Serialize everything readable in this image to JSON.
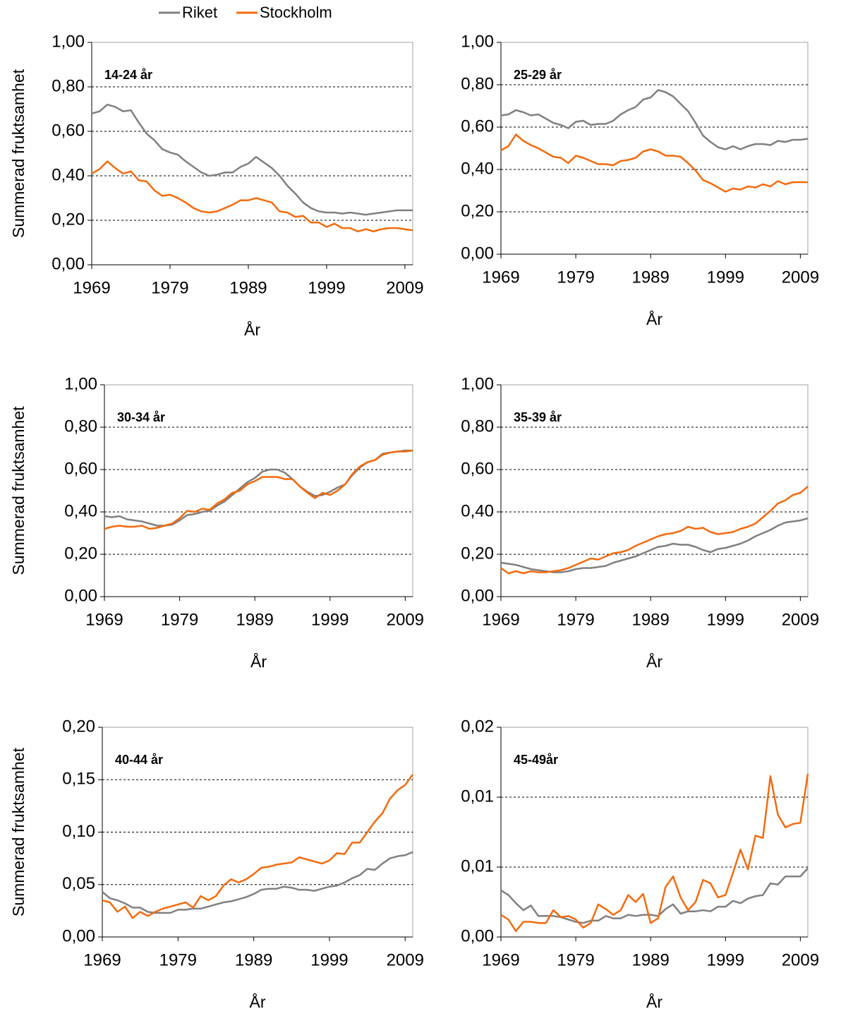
{
  "chart_data": [
    {
      "type": "line",
      "title": "14-24 år",
      "x_label": "År",
      "y_label": "Summerad fruktsamhet",
      "x": [
        1969,
        1970,
        1971,
        1972,
        1973,
        1974,
        1975,
        1976,
        1977,
        1978,
        1979,
        1980,
        1981,
        1982,
        1983,
        1984,
        1985,
        1986,
        1987,
        1988,
        1989,
        1990,
        1991,
        1992,
        1993,
        1994,
        1995,
        1996,
        1997,
        1998,
        1999,
        2000,
        2001,
        2002,
        2003,
        2004,
        2005,
        2006,
        2007,
        2008,
        2009,
        2010
      ],
      "xlim": [
        1969,
        2010
      ],
      "xticks": [
        1969,
        1979,
        1989,
        1999,
        2009
      ],
      "ylim": [
        0,
        1
      ],
      "yticks": [
        {
          "value": 0,
          "label": "0,00"
        },
        {
          "value": 0.2,
          "label": "0,20"
        },
        {
          "value": 0.4,
          "label": "0,40"
        },
        {
          "value": 0.6,
          "label": "0,60"
        },
        {
          "value": 0.8,
          "label": "0,80"
        },
        {
          "value": 1,
          "label": "1,00"
        }
      ],
      "grid": true,
      "series": [
        {
          "name": "Riket",
          "color": "#808080",
          "values": [
            0.68,
            0.69,
            0.72,
            0.71,
            0.69,
            0.695,
            0.64,
            0.59,
            0.56,
            0.52,
            0.505,
            0.495,
            0.465,
            0.44,
            0.415,
            0.4,
            0.405,
            0.415,
            0.415,
            0.44,
            0.455,
            0.485,
            0.46,
            0.435,
            0.4,
            0.355,
            0.32,
            0.28,
            0.255,
            0.24,
            0.235,
            0.235,
            0.23,
            0.235,
            0.23,
            0.225,
            0.23,
            0.235,
            0.24,
            0.245,
            0.245,
            0.245
          ]
        },
        {
          "name": "Stockholm",
          "color": "#f26b0f",
          "values": [
            0.41,
            0.43,
            0.465,
            0.435,
            0.41,
            0.42,
            0.38,
            0.375,
            0.335,
            0.31,
            0.315,
            0.3,
            0.28,
            0.255,
            0.24,
            0.235,
            0.24,
            0.255,
            0.27,
            0.29,
            0.29,
            0.3,
            0.29,
            0.28,
            0.24,
            0.235,
            0.215,
            0.22,
            0.19,
            0.19,
            0.17,
            0.185,
            0.165,
            0.165,
            0.15,
            0.16,
            0.15,
            0.16,
            0.165,
            0.165,
            0.16,
            0.155
          ]
        }
      ]
    },
    {
      "type": "line",
      "title": "25-29 år",
      "x_label": "År",
      "x": [
        1969,
        1970,
        1971,
        1972,
        1973,
        1974,
        1975,
        1976,
        1977,
        1978,
        1979,
        1980,
        1981,
        1982,
        1983,
        1984,
        1985,
        1986,
        1987,
        1988,
        1989,
        1990,
        1991,
        1992,
        1993,
        1994,
        1995,
        1996,
        1997,
        1998,
        1999,
        2000,
        2001,
        2002,
        2003,
        2004,
        2005,
        2006,
        2007,
        2008,
        2009,
        2010
      ],
      "xlim": [
        1969,
        2010
      ],
      "xticks": [
        1969,
        1979,
        1989,
        1999,
        2009
      ],
      "ylim": [
        0,
        1
      ],
      "yticks": [
        {
          "value": 0,
          "label": "0,00"
        },
        {
          "value": 0.2,
          "label": "0,20"
        },
        {
          "value": 0.4,
          "label": "0,40"
        },
        {
          "value": 0.6,
          "label": "0,60"
        },
        {
          "value": 0.8,
          "label": "0,80"
        },
        {
          "value": 1,
          "label": "1,00"
        }
      ],
      "grid": true,
      "series": [
        {
          "color": "#808080",
          "values": [
            0.655,
            0.66,
            0.68,
            0.67,
            0.655,
            0.66,
            0.64,
            0.62,
            0.61,
            0.595,
            0.625,
            0.63,
            0.61,
            0.615,
            0.615,
            0.63,
            0.66,
            0.68,
            0.695,
            0.73,
            0.74,
            0.775,
            0.765,
            0.745,
            0.71,
            0.675,
            0.62,
            0.56,
            0.53,
            0.505,
            0.495,
            0.51,
            0.495,
            0.51,
            0.52,
            0.52,
            0.515,
            0.535,
            0.53,
            0.54,
            0.54,
            0.545
          ]
        },
        {
          "color": "#f26b0f",
          "values": [
            0.49,
            0.51,
            0.565,
            0.535,
            0.515,
            0.5,
            0.48,
            0.46,
            0.455,
            0.43,
            0.465,
            0.455,
            0.44,
            0.425,
            0.425,
            0.42,
            0.44,
            0.445,
            0.455,
            0.485,
            0.495,
            0.485,
            0.465,
            0.465,
            0.46,
            0.43,
            0.395,
            0.35,
            0.335,
            0.315,
            0.295,
            0.31,
            0.305,
            0.32,
            0.315,
            0.33,
            0.32,
            0.345,
            0.33,
            0.34,
            0.34,
            0.34
          ]
        }
      ]
    },
    {
      "type": "line",
      "title": "30-34 år",
      "x_label": "År",
      "y_label": "Summerad fruktsamhet",
      "x": [
        1969,
        1970,
        1971,
        1972,
        1973,
        1974,
        1975,
        1976,
        1977,
        1978,
        1979,
        1980,
        1981,
        1982,
        1983,
        1984,
        1985,
        1986,
        1987,
        1988,
        1989,
        1990,
        1991,
        1992,
        1993,
        1994,
        1995,
        1996,
        1997,
        1998,
        1999,
        2000,
        2001,
        2002,
        2003,
        2004,
        2005,
        2006,
        2007,
        2008,
        2009,
        2010
      ],
      "xlim": [
        1969,
        2010
      ],
      "xticks": [
        1969,
        1979,
        1989,
        1999,
        2009
      ],
      "ylim": [
        0,
        1
      ],
      "yticks": [
        {
          "value": 0,
          "label": "0,00"
        },
        {
          "value": 0.2,
          "label": "0,20"
        },
        {
          "value": 0.4,
          "label": "0,40"
        },
        {
          "value": 0.6,
          "label": "0,60"
        },
        {
          "value": 0.8,
          "label": "0,80"
        },
        {
          "value": 1,
          "label": "1,00"
        }
      ],
      "grid": true,
      "series": [
        {
          "color": "#808080",
          "values": [
            0.38,
            0.375,
            0.38,
            0.365,
            0.36,
            0.355,
            0.345,
            0.335,
            0.335,
            0.34,
            0.36,
            0.385,
            0.39,
            0.4,
            0.405,
            0.43,
            0.45,
            0.48,
            0.51,
            0.54,
            0.56,
            0.59,
            0.6,
            0.6,
            0.585,
            0.555,
            0.52,
            0.495,
            0.475,
            0.48,
            0.495,
            0.515,
            0.53,
            0.575,
            0.61,
            0.635,
            0.645,
            0.675,
            0.68,
            0.685,
            0.69,
            0.69
          ]
        },
        {
          "color": "#f26b0f",
          "values": [
            0.32,
            0.33,
            0.335,
            0.33,
            0.33,
            0.335,
            0.32,
            0.325,
            0.335,
            0.345,
            0.37,
            0.405,
            0.4,
            0.415,
            0.41,
            0.44,
            0.46,
            0.49,
            0.5,
            0.53,
            0.545,
            0.565,
            0.565,
            0.565,
            0.555,
            0.555,
            0.52,
            0.49,
            0.465,
            0.49,
            0.48,
            0.5,
            0.53,
            0.58,
            0.615,
            0.635,
            0.645,
            0.67,
            0.68,
            0.685,
            0.685,
            0.69
          ]
        }
      ]
    },
    {
      "type": "line",
      "title": "35-39 år",
      "x_label": "År",
      "x": [
        1969,
        1970,
        1971,
        1972,
        1973,
        1974,
        1975,
        1976,
        1977,
        1978,
        1979,
        1980,
        1981,
        1982,
        1983,
        1984,
        1985,
        1986,
        1987,
        1988,
        1989,
        1990,
        1991,
        1992,
        1993,
        1994,
        1995,
        1996,
        1997,
        1998,
        1999,
        2000,
        2001,
        2002,
        2003,
        2004,
        2005,
        2006,
        2007,
        2008,
        2009,
        2010
      ],
      "xlim": [
        1969,
        2010
      ],
      "xticks": [
        1969,
        1979,
        1989,
        1999,
        2009
      ],
      "ylim": [
        0,
        1
      ],
      "yticks": [
        {
          "value": 0,
          "label": "0,00"
        },
        {
          "value": 0.2,
          "label": "0,20"
        },
        {
          "value": 0.4,
          "label": "0,40"
        },
        {
          "value": 0.6,
          "label": "0,60"
        },
        {
          "value": 0.8,
          "label": "0,80"
        },
        {
          "value": 1,
          "label": "1,00"
        }
      ],
      "grid": true,
      "series": [
        {
          "color": "#808080",
          "values": [
            0.16,
            0.155,
            0.15,
            0.14,
            0.13,
            0.125,
            0.12,
            0.115,
            0.115,
            0.12,
            0.13,
            0.135,
            0.135,
            0.14,
            0.145,
            0.16,
            0.17,
            0.18,
            0.19,
            0.205,
            0.22,
            0.235,
            0.24,
            0.25,
            0.245,
            0.245,
            0.235,
            0.22,
            0.21,
            0.225,
            0.23,
            0.24,
            0.25,
            0.265,
            0.285,
            0.3,
            0.315,
            0.335,
            0.35,
            0.355,
            0.36,
            0.37
          ]
        },
        {
          "color": "#f26b0f",
          "values": [
            0.135,
            0.11,
            0.12,
            0.11,
            0.12,
            0.115,
            0.115,
            0.12,
            0.125,
            0.135,
            0.15,
            0.165,
            0.18,
            0.175,
            0.19,
            0.205,
            0.21,
            0.22,
            0.24,
            0.255,
            0.27,
            0.285,
            0.295,
            0.3,
            0.31,
            0.33,
            0.32,
            0.325,
            0.305,
            0.295,
            0.3,
            0.305,
            0.32,
            0.33,
            0.345,
            0.375,
            0.405,
            0.44,
            0.455,
            0.48,
            0.49,
            0.52
          ]
        }
      ]
    },
    {
      "type": "line",
      "title": "40-44 år",
      "x_label": "År",
      "y_label": "Summerad fruktsamhet",
      "x": [
        1969,
        1970,
        1971,
        1972,
        1973,
        1974,
        1975,
        1976,
        1977,
        1978,
        1979,
        1980,
        1981,
        1982,
        1983,
        1984,
        1985,
        1986,
        1987,
        1988,
        1989,
        1990,
        1991,
        1992,
        1993,
        1994,
        1995,
        1996,
        1997,
        1998,
        1999,
        2000,
        2001,
        2002,
        2003,
        2004,
        2005,
        2006,
        2007,
        2008,
        2009,
        2010
      ],
      "xlim": [
        1969,
        2010
      ],
      "xticks": [
        1969,
        1979,
        1989,
        1999,
        2009
      ],
      "ylim": [
        0,
        0.2
      ],
      "yticks": [
        {
          "value": 0,
          "label": "0,00"
        },
        {
          "value": 0.05,
          "label": "0,05"
        },
        {
          "value": 0.1,
          "label": "0,10"
        },
        {
          "value": 0.15,
          "label": "0,15"
        },
        {
          "value": 0.2,
          "label": "0,20"
        }
      ],
      "grid": true,
      "series": [
        {
          "color": "#808080",
          "values": [
            0.043,
            0.037,
            0.035,
            0.032,
            0.028,
            0.028,
            0.024,
            0.023,
            0.023,
            0.023,
            0.026,
            0.026,
            0.027,
            0.027,
            0.029,
            0.031,
            0.033,
            0.034,
            0.036,
            0.038,
            0.041,
            0.045,
            0.046,
            0.046,
            0.048,
            0.047,
            0.045,
            0.045,
            0.044,
            0.046,
            0.048,
            0.049,
            0.052,
            0.056,
            0.059,
            0.065,
            0.064,
            0.07,
            0.075,
            0.077,
            0.078,
            0.081
          ]
        },
        {
          "color": "#f26b0f",
          "values": [
            0.035,
            0.033,
            0.024,
            0.029,
            0.018,
            0.024,
            0.02,
            0.024,
            0.027,
            0.029,
            0.031,
            0.033,
            0.028,
            0.039,
            0.035,
            0.039,
            0.049,
            0.055,
            0.052,
            0.055,
            0.06,
            0.066,
            0.067,
            0.069,
            0.07,
            0.071,
            0.076,
            0.074,
            0.072,
            0.07,
            0.073,
            0.08,
            0.079,
            0.09,
            0.09,
            0.1,
            0.11,
            0.118,
            0.132,
            0.14,
            0.145,
            0.155
          ]
        }
      ]
    },
    {
      "type": "line",
      "title": "45-49år",
      "x_label": "År",
      "x": [
        1969,
        1970,
        1971,
        1972,
        1973,
        1974,
        1975,
        1976,
        1977,
        1978,
        1979,
        1980,
        1981,
        1982,
        1983,
        1984,
        1985,
        1986,
        1987,
        1988,
        1989,
        1990,
        1991,
        1992,
        1993,
        1994,
        1995,
        1996,
        1997,
        1998,
        1999,
        2000,
        2001,
        2002,
        2003,
        2004,
        2005,
        2006,
        2007,
        2008,
        2009,
        2010
      ],
      "xlim": [
        1969,
        2010
      ],
      "xticks": [
        1969,
        1979,
        1989,
        1999,
        2009
      ],
      "ylim": [
        0,
        0.018
      ],
      "yticks": [
        {
          "value": 0,
          "label": "0,00"
        },
        {
          "value": 0.006,
          "label": "0,01"
        },
        {
          "value": 0.012,
          "label": "0,01"
        },
        {
          "value": 0.018,
          "label": "0,02"
        }
      ],
      "grid": true,
      "series": [
        {
          "color": "#808080",
          "values": [
            0.004,
            0.0036,
            0.0029,
            0.0023,
            0.0027,
            0.0018,
            0.0018,
            0.0018,
            0.0017,
            0.0015,
            0.0013,
            0.0012,
            0.0014,
            0.0014,
            0.0018,
            0.0016,
            0.0016,
            0.0019,
            0.0018,
            0.0019,
            0.0019,
            0.0018,
            0.0024,
            0.0028,
            0.002,
            0.0022,
            0.0022,
            0.0023,
            0.0022,
            0.0026,
            0.0026,
            0.0031,
            0.0029,
            0.0033,
            0.0035,
            0.0036,
            0.0046,
            0.0045,
            0.0052,
            0.0052,
            0.0052,
            0.0059
          ]
        },
        {
          "color": "#f26b0f",
          "values": [
            0.0019,
            0.0015,
            0.0005,
            0.0013,
            0.0013,
            0.0012,
            0.0012,
            0.0023,
            0.0017,
            0.0018,
            0.0015,
            0.0008,
            0.0012,
            0.0028,
            0.0024,
            0.0019,
            0.0023,
            0.0036,
            0.003,
            0.0037,
            0.0012,
            0.0016,
            0.0043,
            0.0052,
            0.0034,
            0.0023,
            0.003,
            0.0049,
            0.0046,
            0.0034,
            0.0036,
            0.0055,
            0.0075,
            0.0058,
            0.0087,
            0.0085,
            0.0138,
            0.0105,
            0.0094,
            0.0097,
            0.0098,
            0.014
          ]
        }
      ]
    }
  ]
}
